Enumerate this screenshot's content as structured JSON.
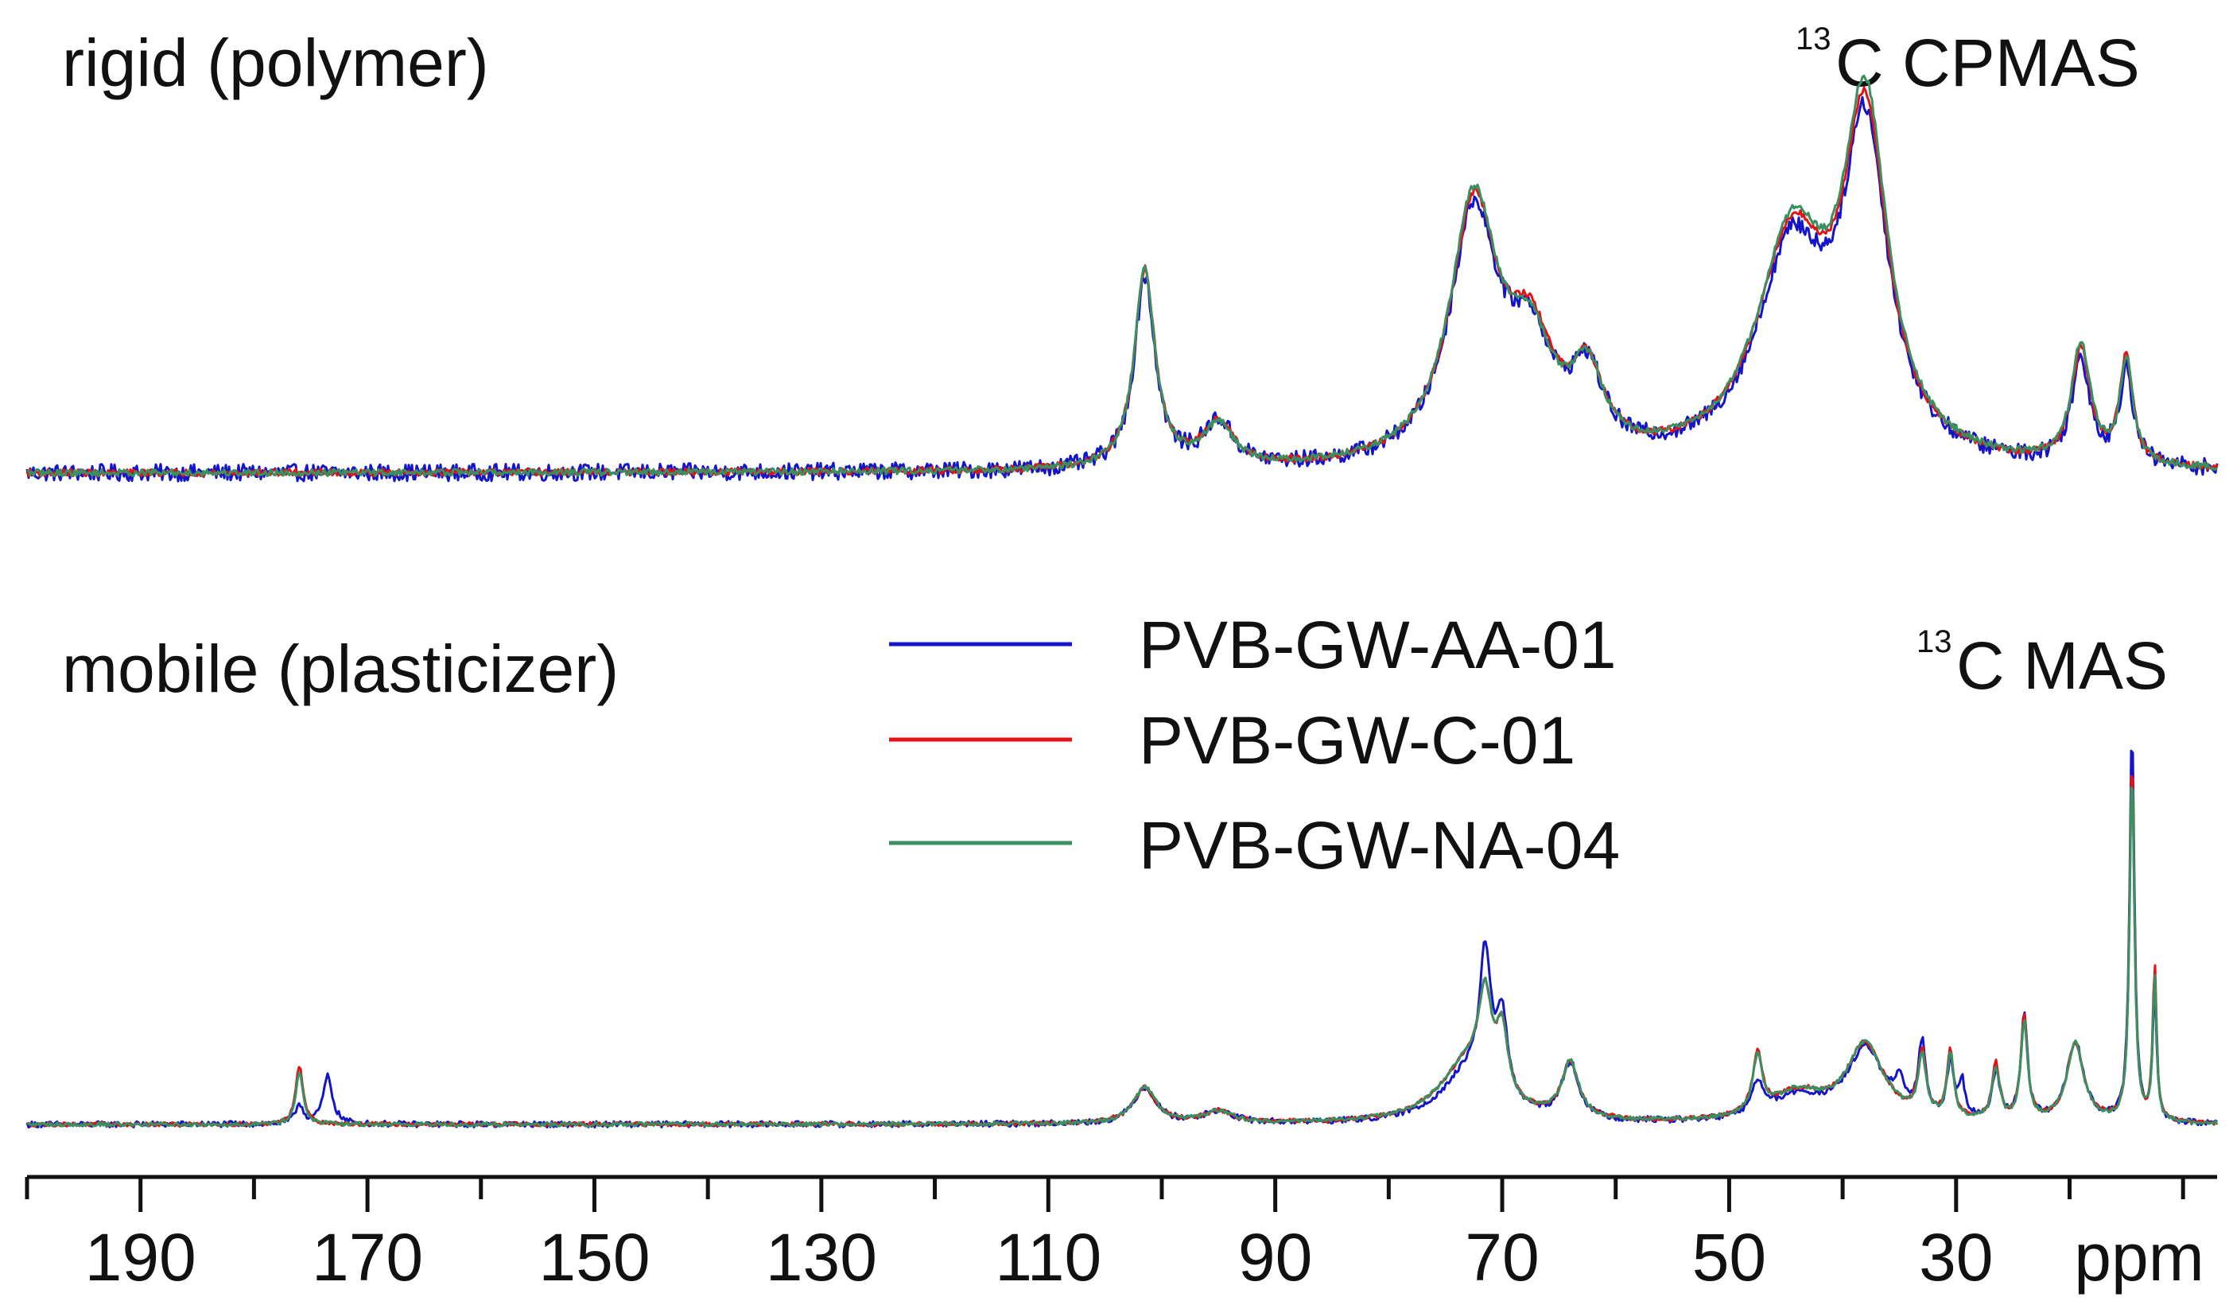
{
  "chart_data": [
    {
      "type": "line",
      "panel": "rigid",
      "title": "rigid (polymer)",
      "experiment": {
        "superscript": "13",
        "label": "C CPMAS"
      },
      "xlabel": "ppm",
      "xlim": [
        200,
        7
      ],
      "x_reversed": true,
      "description_points_ppm": [
        200,
        110,
        104,
        101,
        98,
        95,
        93,
        90,
        80,
        75,
        72,
        70,
        68,
        66,
        62,
        58,
        52,
        46,
        44,
        42,
        40,
        38,
        36,
        34,
        30,
        26,
        24,
        20,
        18,
        16,
        14,
        12,
        10,
        7
      ],
      "series": [
        {
          "name": "PVB-GW-AA-01",
          "color": "#1515c8",
          "noise": 0.05,
          "peaks": [
            [
              101.5,
              0.56,
              1.1
            ],
            [
              95,
              0.13,
              1.6
            ],
            [
              72.5,
              0.72,
              2.6
            ],
            [
              67.5,
              0.3,
              2.5
            ],
            [
              62.5,
              0.22,
              1.7
            ],
            [
              44.5,
              0.6,
              3.8
            ],
            [
              38,
              0.92,
              2.4
            ],
            [
              19,
              0.3,
              1.0
            ],
            [
              15,
              0.28,
              0.7
            ]
          ]
        },
        {
          "name": "PVB-GW-C-01",
          "color": "#e01414",
          "noise": 0.02,
          "peaks": [
            [
              101.5,
              0.58,
              1.1
            ],
            [
              95,
              0.13,
              1.6
            ],
            [
              72.5,
              0.74,
              2.6
            ],
            [
              67.5,
              0.31,
              2.5
            ],
            [
              62.5,
              0.22,
              1.7
            ],
            [
              44.5,
              0.63,
              3.8
            ],
            [
              38,
              0.95,
              2.4
            ],
            [
              19,
              0.33,
              1.0
            ],
            [
              15,
              0.31,
              0.7
            ]
          ]
        },
        {
          "name": "PVB-GW-NA-04",
          "color": "#3a9060",
          "noise": 0.02,
          "peaks": [
            [
              101.5,
              0.58,
              1.1
            ],
            [
              95,
              0.12,
              1.6
            ],
            [
              72.5,
              0.76,
              2.6
            ],
            [
              67.5,
              0.29,
              2.5
            ],
            [
              62.5,
              0.22,
              1.7
            ],
            [
              44.5,
              0.64,
              3.8
            ],
            [
              38,
              0.99,
              2.4
            ],
            [
              19,
              0.35,
              1.0
            ],
            [
              15,
              0.3,
              0.7
            ]
          ]
        }
      ]
    },
    {
      "type": "line",
      "panel": "mobile",
      "title": "mobile (plasticizer)",
      "experiment": {
        "superscript": "13",
        "label": "C MAS"
      },
      "xlabel": "ppm",
      "xlim": [
        200,
        7
      ],
      "x_reversed": true,
      "series": [
        {
          "name": "PVB-GW-AA-01",
          "color": "#1515c8",
          "noise": 0.015,
          "peaks": [
            [
              176,
              0.05,
              0.4
            ],
            [
              173.5,
              0.12,
              0.5
            ],
            [
              101.5,
              0.09,
              1.2
            ],
            [
              95,
              0.03,
              1.5
            ],
            [
              71.5,
              0.34,
              0.6
            ],
            [
              70,
              0.2,
              0.6
            ],
            [
              73,
              0.12,
              3
            ],
            [
              64,
              0.14,
              0.9
            ],
            [
              47.5,
              0.08,
              0.6
            ],
            [
              44,
              0.06,
              3
            ],
            [
              38,
              0.18,
              2.0
            ],
            [
              35,
              0.06,
              0.5
            ],
            [
              33,
              0.18,
              0.4
            ],
            [
              30.5,
              0.14,
              0.35
            ],
            [
              29.5,
              0.09,
              0.35
            ],
            [
              26.5,
              0.12,
              0.4
            ],
            [
              24,
              0.27,
              0.35
            ],
            [
              19.5,
              0.2,
              0.9
            ],
            [
              14.5,
              1.0,
              0.25
            ],
            [
              12.5,
              0.34,
              0.2
            ]
          ]
        },
        {
          "name": "PVB-GW-C-01",
          "color": "#e01414",
          "noise": 0.01,
          "peaks": [
            [
              176,
              0.15,
              0.4
            ],
            [
              101.5,
              0.09,
              1.2
            ],
            [
              95,
              0.03,
              1.5
            ],
            [
              71.5,
              0.22,
              0.7
            ],
            [
              70,
              0.16,
              0.6
            ],
            [
              73,
              0.15,
              3
            ],
            [
              64,
              0.14,
              0.9
            ],
            [
              47.5,
              0.15,
              0.5
            ],
            [
              44,
              0.07,
              3
            ],
            [
              38,
              0.19,
              2.0
            ],
            [
              33,
              0.16,
              0.4
            ],
            [
              30.5,
              0.17,
              0.35
            ],
            [
              26.5,
              0.14,
              0.4
            ],
            [
              24,
              0.26,
              0.35
            ],
            [
              19.5,
              0.2,
              0.9
            ],
            [
              14.5,
              0.93,
              0.25
            ],
            [
              12.5,
              0.39,
              0.2
            ]
          ]
        },
        {
          "name": "PVB-GW-NA-04",
          "color": "#3a9060",
          "noise": 0.01,
          "peaks": [
            [
              176,
              0.13,
              0.4
            ],
            [
              101.5,
              0.09,
              1.2
            ],
            [
              95,
              0.03,
              1.5
            ],
            [
              71.5,
              0.22,
              0.7
            ],
            [
              70,
              0.16,
              0.6
            ],
            [
              73,
              0.15,
              3
            ],
            [
              64,
              0.14,
              0.9
            ],
            [
              47.5,
              0.14,
              0.5
            ],
            [
              44,
              0.07,
              3
            ],
            [
              38,
              0.19,
              2.0
            ],
            [
              33,
              0.15,
              0.4
            ],
            [
              30.5,
              0.16,
              0.35
            ],
            [
              26.5,
              0.13,
              0.4
            ],
            [
              24,
              0.25,
              0.35
            ],
            [
              19.5,
              0.2,
              0.9
            ],
            [
              14.5,
              0.9,
              0.25
            ],
            [
              12.5,
              0.37,
              0.2
            ]
          ]
        }
      ]
    }
  ],
  "legend": {
    "entries": [
      {
        "name": "PVB-GW-AA-01",
        "color": "#1515c8"
      },
      {
        "name": "PVB-GW-C-01",
        "color": "#e01414"
      },
      {
        "name": "PVB-GW-NA-04",
        "color": "#3a9060"
      }
    ],
    "placement": "center"
  },
  "x_axis": {
    "unit_label": "ppm",
    "major_tick_labels": [
      "190",
      "170",
      "150",
      "130",
      "110",
      "90",
      "70",
      "50",
      "30"
    ],
    "major_tick_values": [
      190,
      170,
      150,
      130,
      110,
      90,
      70,
      50,
      30
    ],
    "minor_tick_values": [
      200,
      180,
      160,
      140,
      120,
      100,
      80,
      60,
      40,
      20,
      10
    ]
  }
}
